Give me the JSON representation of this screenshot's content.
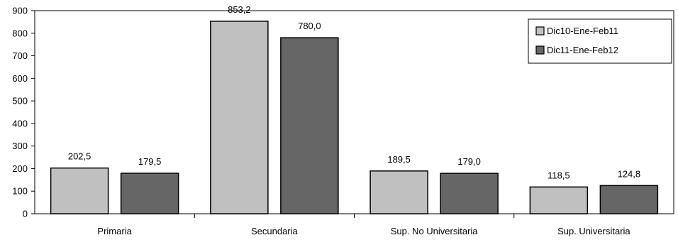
{
  "chart_data": {
    "type": "bar",
    "title": "",
    "xlabel": "",
    "ylabel": "",
    "ylim": [
      0,
      900
    ],
    "yticks": [
      0,
      100,
      200,
      300,
      400,
      500,
      600,
      700,
      800,
      900
    ],
    "categories": [
      "Primaria",
      "Secundaria",
      "Sup. No Universitaria",
      "Sup. Universitaria"
    ],
    "series": [
      {
        "name": "Dic10-Ene-Feb11",
        "color": "#c0c0c0",
        "values": [
          202.5,
          853.2,
          189.5,
          118.5
        ],
        "labels": [
          "202,5",
          "853,2",
          "189,5",
          "118,5"
        ]
      },
      {
        "name": "Dic11-Ene-Feb12",
        "color": "#666666",
        "values": [
          179.5,
          780.0,
          179.0,
          124.8
        ],
        "labels": [
          "179,5",
          "780,0",
          "179,0",
          "124,8"
        ]
      }
    ],
    "grid": false,
    "legend_position": "top-right"
  }
}
